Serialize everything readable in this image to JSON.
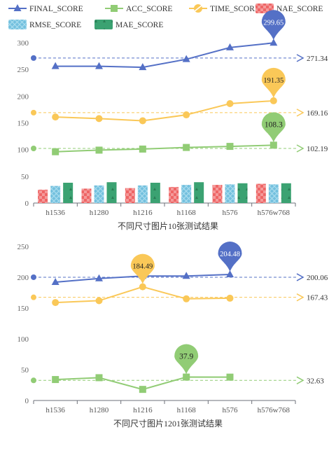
{
  "legend": [
    {
      "label": "FINAL_SCORE",
      "color": "#5470c6",
      "marker": "triangle"
    },
    {
      "label": "ACC_SCORE",
      "color": "#91cc75",
      "marker": "square"
    },
    {
      "label": "TIME_SCORE",
      "color": "#fac858",
      "marker": "circle"
    },
    {
      "label": "NAE_SCORE",
      "color": "#ee6666",
      "marker": "checker"
    },
    {
      "label": "RMSE_SCORE",
      "color": "#73c0de",
      "marker": "crosshatch"
    },
    {
      "label": "MAE_SCORE",
      "color": "#3ba272",
      "marker": "triangles"
    }
  ],
  "chart_data": [
    {
      "type": "line",
      "title": "不同尺寸图片10张测试结果",
      "categories": [
        "h1536",
        "h1280",
        "h1216",
        "h1168",
        "h576",
        "h576w768"
      ],
      "ylim": [
        0,
        300
      ],
      "yticks": [
        0,
        50,
        100,
        150,
        200,
        250,
        300
      ],
      "grid": false,
      "series": [
        {
          "name": "FINAL_SCORE",
          "kind": "line",
          "color": "#5470c6",
          "values": [
            256,
            256,
            254,
            269,
            291,
            299.65
          ],
          "max_label": "299.65",
          "avg": 271.34,
          "avg_label": "271.34"
        },
        {
          "name": "TIME_SCORE",
          "kind": "line",
          "color": "#fac858",
          "values": [
            161,
            158,
            154,
            165,
            186,
            191.35
          ],
          "max_label": "191.35",
          "avg": 169.16,
          "avg_label": "169.16"
        },
        {
          "name": "ACC_SCORE",
          "kind": "line",
          "color": "#91cc75",
          "values": [
            96,
            99,
            101,
            104,
            106,
            108.3
          ],
          "max_label": "108.3",
          "avg": 102.19,
          "avg_label": "102.19"
        },
        {
          "name": "NAE_SCORE",
          "kind": "bar",
          "color": "#ee6666",
          "values": [
            25,
            27,
            28,
            30,
            34,
            36
          ]
        },
        {
          "name": "RMSE_SCORE",
          "kind": "bar",
          "color": "#73c0de",
          "values": [
            32,
            33,
            33,
            34,
            35,
            35
          ]
        },
        {
          "name": "MAE_SCORE",
          "kind": "bar",
          "color": "#3ba272",
          "values": [
            38,
            39,
            38,
            39,
            37,
            37
          ]
        }
      ]
    },
    {
      "type": "line",
      "title": "不同尺寸图片1201张测试结果",
      "categories": [
        "h1536",
        "h1280",
        "h1216",
        "h1168",
        "h576",
        "h576w768"
      ],
      "ylim": [
        0,
        250
      ],
      "yticks": [
        0,
        50,
        100,
        150,
        200,
        250
      ],
      "grid": false,
      "series": [
        {
          "name": "FINAL_SCORE",
          "kind": "line",
          "color": "#5470c6",
          "values": [
            192,
            198,
            202,
            202,
            204.48,
            null
          ],
          "max_label": "204.48",
          "avg": 200.06,
          "avg_label": "200.06"
        },
        {
          "name": "TIME_SCORE",
          "kind": "line",
          "color": "#fac858",
          "values": [
            159,
            162,
            184.49,
            165,
            166,
            null
          ],
          "max_label": "184.49",
          "avg": 167.43,
          "avg_label": "167.43"
        },
        {
          "name": "ACC_SCORE",
          "kind": "line",
          "color": "#91cc75",
          "values": [
            34,
            37,
            18,
            38,
            37.9,
            null
          ],
          "max_label": "37.9",
          "avg": 32.63,
          "avg_label": "32.63"
        }
      ]
    }
  ]
}
